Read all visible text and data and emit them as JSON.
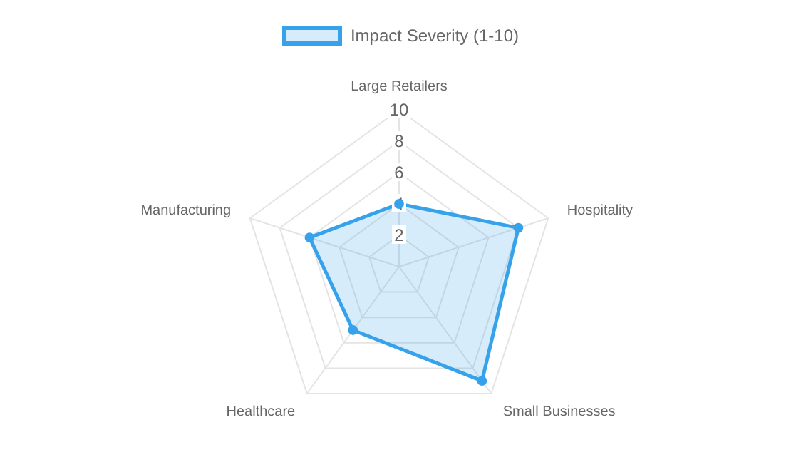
{
  "chart_data": {
    "type": "radar",
    "categories": [
      "Large Retailers",
      "Hospitality",
      "Small Businesses",
      "Healthcare",
      "Manufacturing"
    ],
    "series": [
      {
        "name": "Impact Severity (1-10)",
        "color": "#36a2eb",
        "values": [
          4,
          8,
          9,
          5,
          6
        ]
      }
    ],
    "ylim": [
      0,
      10
    ],
    "yticks": [
      2,
      4,
      6,
      8,
      10
    ],
    "grid": true,
    "legend": "top",
    "marker": "circle"
  }
}
